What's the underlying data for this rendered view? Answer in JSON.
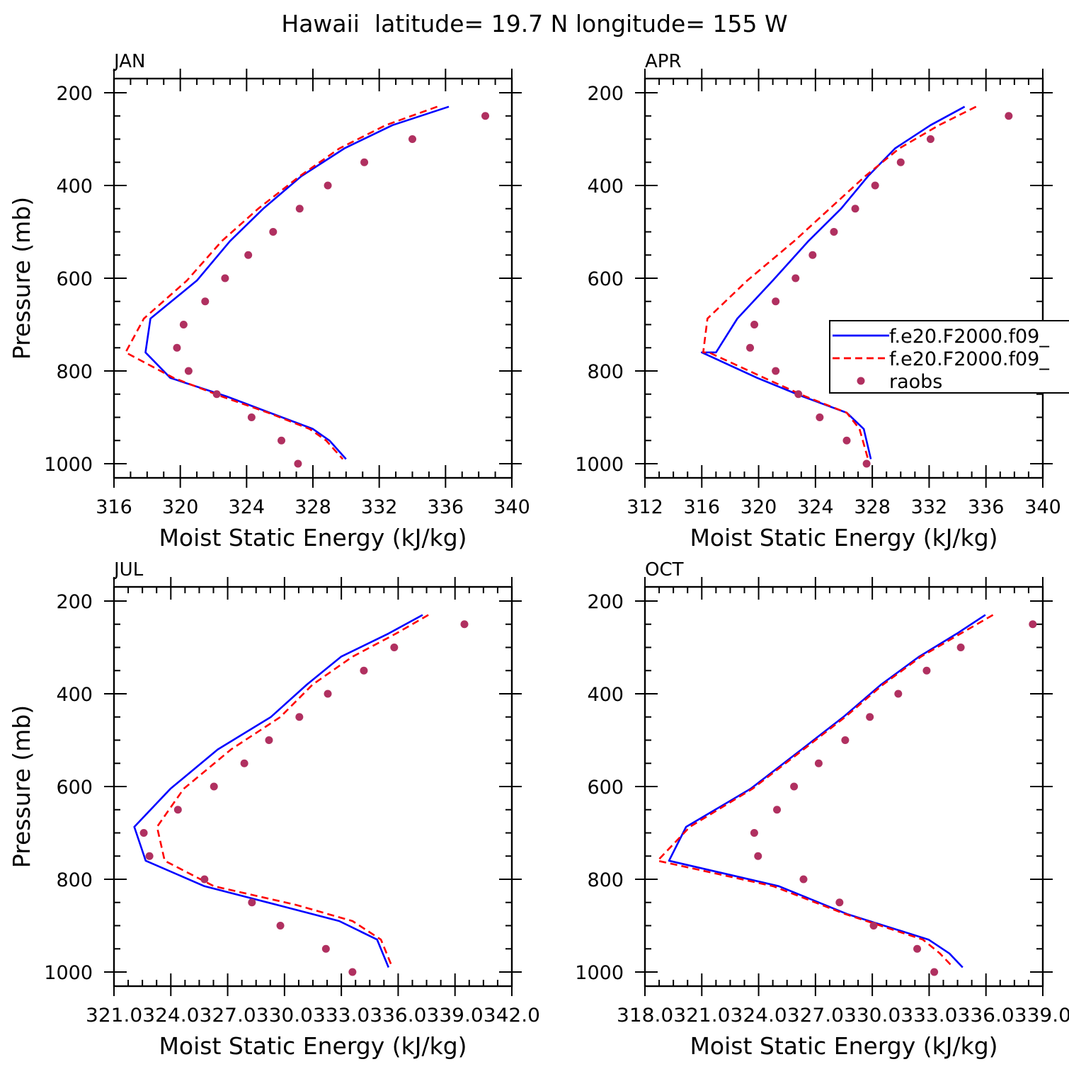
{
  "figure": {
    "title": "Hawaii  latitude= 19.7 N longitude= 155 W"
  },
  "legend": {
    "entries": [
      {
        "label": "f.e20.F2000.f09_",
        "style": "line",
        "color": "#0000ff"
      },
      {
        "label": "f.e20.F2000.f09_",
        "style": "dash",
        "color": "#ff0000"
      },
      {
        "label": "raobs",
        "style": "marker",
        "color": "#b03060"
      }
    ]
  },
  "colors": {
    "series1": "#0000ff",
    "series2": "#ff0000",
    "raobs": "#b03060"
  },
  "chart_data": [
    {
      "type": "line",
      "panel_label": "JAN",
      "xlabel": "Moist Static Energy (kJ/kg)",
      "ylabel": "Pressure (mb)",
      "xlim": [
        316,
        340
      ],
      "ylim": [
        200,
        1000
      ],
      "y_inverted": true,
      "xticks": [
        316,
        320,
        324,
        328,
        332,
        336,
        340
      ],
      "xtick_labels": [
        "316",
        "320",
        "324",
        "328",
        "332",
        "336",
        "340"
      ],
      "yticks": [
        200,
        400,
        600,
        800,
        1000
      ],
      "series": [
        {
          "name": "f.e20.F2000.f09_",
          "style": "solid",
          "x": [
            336.2,
            332.8,
            329.9,
            327.3,
            325.0,
            323.0,
            321.0,
            318.2,
            317.9,
            319.4,
            322.8,
            325.4,
            328.0,
            329.0,
            330.0
          ],
          "y": [
            230,
            270,
            320,
            380,
            450,
            520,
            605,
            687,
            760,
            815,
            855,
            890,
            925,
            950,
            990
          ]
        },
        {
          "name": "f.e20.F2000.f09_",
          "style": "dashed",
          "x": [
            335.5,
            332.4,
            329.6,
            327.2,
            324.7,
            322.5,
            320.4,
            317.8,
            316.7,
            319.6,
            322.5,
            325.3,
            327.8,
            328.8,
            329.8
          ],
          "y": [
            230,
            270,
            320,
            380,
            450,
            520,
            605,
            687,
            760,
            815,
            855,
            890,
            925,
            950,
            990
          ]
        },
        {
          "name": "raobs",
          "style": "points",
          "x": [
            338.4,
            334.0,
            331.1,
            328.9,
            327.2,
            325.6,
            324.1,
            322.7,
            321.5,
            320.2,
            319.8,
            320.5,
            322.2,
            324.3,
            326.1,
            327.1
          ],
          "y": [
            250,
            300,
            350,
            400,
            450,
            500,
            550,
            600,
            650,
            700,
            750,
            800,
            850,
            900,
            950,
            1000
          ]
        }
      ]
    },
    {
      "type": "line",
      "panel_label": "APR",
      "xlabel": "Moist Static Energy (kJ/kg)",
      "ylabel": "",
      "xlim": [
        312,
        340
      ],
      "ylim": [
        200,
        1000
      ],
      "y_inverted": true,
      "xticks": [
        312,
        316,
        320,
        324,
        328,
        332,
        336,
        340
      ],
      "xtick_labels": [
        "312",
        "316",
        "320",
        "324",
        "328",
        "332",
        "336",
        "340"
      ],
      "yticks": [
        200,
        400,
        600,
        800,
        1000
      ],
      "series": [
        {
          "name": "f.e20.F2000.f09_",
          "style": "solid",
          "x": [
            334.5,
            332.1,
            329.6,
            327.7,
            325.8,
            323.5,
            321.0,
            318.5,
            317.0,
            316.0,
            319.9,
            323.1,
            326.2,
            327.4,
            327.9
          ],
          "y": [
            230,
            270,
            320,
            380,
            450,
            520,
            605,
            687,
            760,
            760,
            815,
            855,
            890,
            925,
            990
          ]
        },
        {
          "name": "f.e20.F2000.f09_",
          "style": "dashed",
          "x": [
            335.3,
            332.7,
            329.9,
            327.5,
            325.0,
            322.5,
            319.2,
            316.4,
            316.1,
            316.5,
            320.4,
            323.3,
            326.2,
            327.1,
            327.7
          ],
          "y": [
            230,
            270,
            320,
            380,
            450,
            520,
            605,
            687,
            760,
            760,
            815,
            855,
            890,
            925,
            990
          ]
        },
        {
          "name": "raobs",
          "style": "points",
          "x": [
            337.6,
            332.1,
            330.0,
            328.2,
            326.8,
            325.3,
            323.8,
            322.6,
            321.2,
            319.7,
            319.4,
            321.2,
            322.8,
            324.3,
            326.2,
            327.6
          ],
          "y": [
            250,
            300,
            350,
            400,
            450,
            500,
            550,
            600,
            650,
            700,
            750,
            800,
            850,
            900,
            950,
            1000
          ]
        }
      ]
    },
    {
      "type": "line",
      "panel_label": "JUL",
      "xlabel": "Moist Static Energy (kJ/kg)",
      "ylabel": "Pressure (mb)",
      "xlim": [
        321.03,
        342.0
      ],
      "ylim": [
        200,
        1000
      ],
      "y_inverted": true,
      "xticks": [
        321.03,
        324.03,
        327.03,
        330.03,
        333.03,
        336.03,
        339.03,
        342.0
      ],
      "xtick_labels": [
        "321.03",
        "24.03",
        "27.03",
        "30.03",
        "33.03",
        "36.03",
        "39.03",
        "42.0"
      ],
      "xtick_row": "321.0324.0327.0330.0333.0336.0339.0342.0",
      "yticks": [
        200,
        400,
        600,
        800,
        1000
      ],
      "series": [
        {
          "name": "f.e20.F2000.f09_",
          "style": "solid",
          "x": [
            337.3,
            335.5,
            333.0,
            331.2,
            329.3,
            326.5,
            324.0,
            322.1,
            322.7,
            325.8,
            329.6,
            332.9,
            334.9,
            335.5
          ],
          "y": [
            230,
            270,
            320,
            380,
            450,
            520,
            605,
            687,
            760,
            815,
            855,
            890,
            930,
            990
          ]
        },
        {
          "name": "f.e20.F2000.f09_",
          "style": "dashed",
          "x": [
            337.6,
            335.9,
            333.6,
            331.5,
            329.8,
            327.2,
            324.7,
            323.3,
            323.7,
            326.3,
            330.6,
            333.6,
            335.1,
            335.7
          ],
          "y": [
            230,
            270,
            320,
            380,
            450,
            520,
            605,
            687,
            760,
            815,
            855,
            890,
            930,
            990
          ]
        },
        {
          "name": "raobs",
          "style": "points",
          "x": [
            339.5,
            335.8,
            334.2,
            332.3,
            330.8,
            329.2,
            327.9,
            326.3,
            324.4,
            322.6,
            322.9,
            325.8,
            328.3,
            329.8,
            332.2,
            333.6
          ],
          "y": [
            250,
            300,
            350,
            400,
            450,
            500,
            550,
            600,
            650,
            700,
            750,
            800,
            850,
            900,
            950,
            1000
          ]
        }
      ]
    },
    {
      "type": "line",
      "panel_label": "OCT",
      "xlabel": "Moist Static Energy (kJ/kg)",
      "ylabel": "",
      "xlim": [
        318.03,
        339.03
      ],
      "ylim": [
        200,
        1000
      ],
      "y_inverted": true,
      "xticks": [
        318.03,
        321.03,
        324.03,
        327.03,
        330.03,
        333.03,
        336.03,
        339.03
      ],
      "xtick_labels": [
        "318.03",
        "21.03",
        "24.03",
        "27.03",
        "30.03",
        "33.03",
        "36.03",
        "39.0"
      ],
      "xtick_row": "318.0321.0324.0327.0330.0333.0336.0339.0",
      "yticks": [
        200,
        400,
        600,
        800,
        1000
      ],
      "series": [
        {
          "name": "f.e20.F2000.f09_",
          "style": "solid",
          "x": [
            336.0,
            334.5,
            332.5,
            330.5,
            328.5,
            326.3,
            323.6,
            320.2,
            319.3,
            325.1,
            328.7,
            333.0,
            334.1,
            334.8
          ],
          "y": [
            230,
            270,
            320,
            380,
            450,
            520,
            605,
            687,
            760,
            815,
            875,
            930,
            960,
            990
          ]
        },
        {
          "name": "f.e20.F2000.f09_",
          "style": "dashed",
          "x": [
            336.4,
            334.7,
            332.6,
            330.6,
            328.6,
            326.4,
            323.7,
            320.4,
            318.7,
            324.8,
            328.6,
            332.7,
            333.6,
            334.3
          ],
          "y": [
            230,
            270,
            320,
            380,
            450,
            520,
            605,
            687,
            760,
            815,
            875,
            930,
            960,
            990
          ]
        },
        {
          "name": "raobs",
          "style": "points",
          "x": [
            338.5,
            334.7,
            332.9,
            331.4,
            329.9,
            328.6,
            327.2,
            325.9,
            325.0,
            323.8,
            324.0,
            326.4,
            328.3,
            330.1,
            332.4,
            333.3
          ],
          "y": [
            250,
            300,
            350,
            400,
            450,
            500,
            550,
            600,
            650,
            700,
            750,
            800,
            850,
            900,
            950,
            1000
          ]
        }
      ]
    }
  ]
}
